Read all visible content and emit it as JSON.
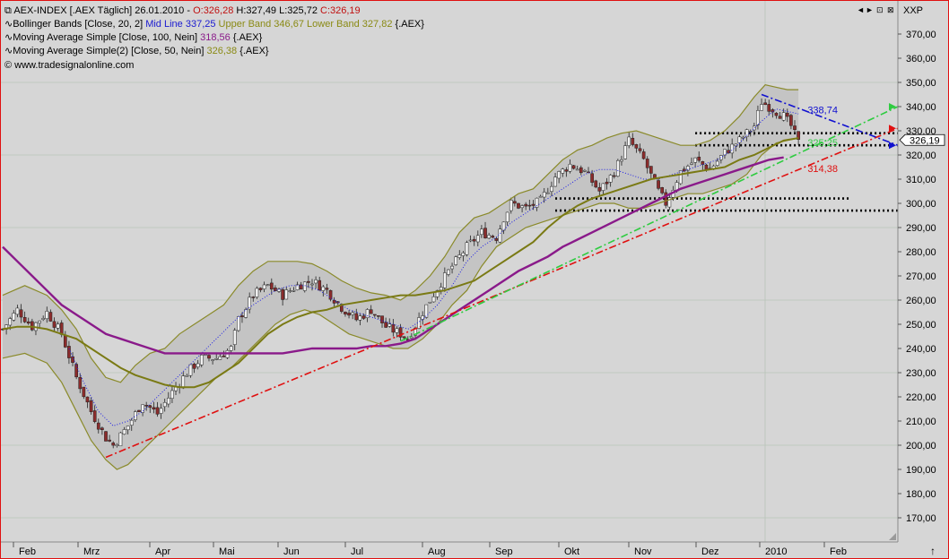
{
  "window": {
    "controls": [
      "◄",
      "►",
      "⊡",
      "⊠"
    ],
    "price_axis_label": "XXP"
  },
  "legend": {
    "line1": {
      "symbol": "AEX-INDEX [.AEX  Täglich]",
      "date": "26.01.2010 -",
      "open": "O:326,28",
      "high": "H:327,49",
      "low": "L:325,72",
      "close": "C:326,19"
    },
    "line2": {
      "prefix": "Bollinger Bands [Close, 20, 2]",
      "mid": "Mid Line 337,25",
      "upper": "Upper Band 346,67",
      "lower": "Lower Band 327,82",
      "suffix": "{.AEX}"
    },
    "line3": {
      "prefix": "Moving Average Simple [Close, 100, Nein]",
      "value": "318,56",
      "suffix": "{.AEX}"
    },
    "line4": {
      "prefix": "Moving Average Simple(2) [Close, 50, Nein]",
      "value": "326,38",
      "suffix": "{.AEX}"
    },
    "line5": "© www.tradesignalonline.com"
  },
  "colors": {
    "background": "#d6d6d6",
    "candle_up": "#f2f2f2",
    "candle_down": "#8c2c2c",
    "bollinger": "#8a8a2a",
    "bollinger_fill": "#c4c4c4",
    "bb_mid": "#1e1ee6",
    "ma100": "#8a1a8a",
    "ma50": "#7a7a14",
    "trend_red": "#e01010",
    "trend_green": "#2ecc40",
    "trend_blue": "#1010d0",
    "support": "#000000",
    "legend_mid": "#1a1ad0",
    "legend_upper": "#8a8a14",
    "legend_ma100": "#8a1a8a",
    "legend_ma50": "#8a8a14",
    "legend_ohlc": "#c01010"
  },
  "annotations": {
    "blue_value": "338,74",
    "green_value": "325,25",
    "red_value": "314,38",
    "last_price": "326,19"
  },
  "chart_data": {
    "type": "candlestick",
    "title": "AEX-INDEX [.AEX  Täglich]",
    "ylim": [
      160,
      380
    ],
    "yticks": [
      170,
      180,
      190,
      200,
      210,
      220,
      230,
      240,
      250,
      260,
      270,
      280,
      290,
      300,
      310,
      320,
      330,
      340,
      350,
      360,
      370
    ],
    "ytick_labels": [
      "170,00",
      "180,00",
      "190,00",
      "200,00",
      "210,00",
      "220,00",
      "230,00",
      "240,00",
      "250,00",
      "260,00",
      "270,00",
      "280,00",
      "290,00",
      "300,00",
      "310,00",
      "320,00",
      "330,00",
      "340,00",
      "350,00",
      "360,00",
      "370,00"
    ],
    "months": [
      "Feb",
      "Mrz",
      "Apr",
      "Mai",
      "Jun",
      "Jul",
      "Aug",
      "Sep",
      "Okt",
      "Nov",
      "Dez",
      "2010",
      "Feb"
    ],
    "grid": true,
    "price_path": [
      [
        0,
        248
      ],
      [
        4,
        256
      ],
      [
        8,
        249
      ],
      [
        12,
        255
      ],
      [
        16,
        246
      ],
      [
        20,
        228
      ],
      [
        24,
        214
      ],
      [
        28,
        203
      ],
      [
        30,
        200
      ],
      [
        34,
        208
      ],
      [
        38,
        218
      ],
      [
        42,
        213
      ],
      [
        46,
        222
      ],
      [
        50,
        230
      ],
      [
        54,
        236
      ],
      [
        58,
        236
      ],
      [
        62,
        240
      ],
      [
        64,
        252
      ],
      [
        68,
        262
      ],
      [
        72,
        266
      ],
      [
        76,
        262
      ],
      [
        80,
        266
      ],
      [
        84,
        268
      ],
      [
        88,
        264
      ],
      [
        92,
        257
      ],
      [
        96,
        252
      ],
      [
        100,
        256
      ],
      [
        104,
        249
      ],
      [
        108,
        246
      ],
      [
        110,
        244
      ],
      [
        114,
        255
      ],
      [
        118,
        265
      ],
      [
        122,
        274
      ],
      [
        126,
        282
      ],
      [
        130,
        288
      ],
      [
        134,
        286
      ],
      [
        136,
        294
      ],
      [
        138,
        300
      ],
      [
        142,
        298
      ],
      [
        146,
        301
      ],
      [
        150,
        311
      ],
      [
        154,
        316
      ],
      [
        158,
        313
      ],
      [
        162,
        305
      ],
      [
        166,
        313
      ],
      [
        170,
        326
      ],
      [
        174,
        318
      ],
      [
        178,
        305
      ],
      [
        180,
        300
      ],
      [
        184,
        313
      ],
      [
        188,
        318
      ],
      [
        192,
        314
      ],
      [
        196,
        321
      ],
      [
        200,
        326
      ],
      [
        204,
        332
      ],
      [
        206,
        342
      ],
      [
        208,
        340
      ],
      [
        212,
        336
      ],
      [
        214,
        332
      ],
      [
        216,
        325
      ]
    ],
    "bollinger_upper": [
      [
        0,
        262
      ],
      [
        6,
        266
      ],
      [
        12,
        262
      ],
      [
        16,
        256
      ],
      [
        20,
        248
      ],
      [
        24,
        236
      ],
      [
        28,
        228
      ],
      [
        32,
        226
      ],
      [
        36,
        233
      ],
      [
        40,
        238
      ],
      [
        44,
        240
      ],
      [
        48,
        246
      ],
      [
        52,
        250
      ],
      [
        56,
        254
      ],
      [
        60,
        258
      ],
      [
        64,
        266
      ],
      [
        68,
        272
      ],
      [
        72,
        276
      ],
      [
        76,
        276
      ],
      [
        80,
        276
      ],
      [
        84,
        275
      ],
      [
        88,
        272
      ],
      [
        92,
        268
      ],
      [
        96,
        265
      ],
      [
        100,
        263
      ],
      [
        104,
        262
      ],
      [
        108,
        260
      ],
      [
        112,
        264
      ],
      [
        116,
        270
      ],
      [
        120,
        278
      ],
      [
        124,
        288
      ],
      [
        128,
        294
      ],
      [
        132,
        296
      ],
      [
        136,
        300
      ],
      [
        140,
        304
      ],
      [
        144,
        306
      ],
      [
        148,
        312
      ],
      [
        152,
        318
      ],
      [
        156,
        322
      ],
      [
        160,
        324
      ],
      [
        164,
        327
      ],
      [
        168,
        329
      ],
      [
        172,
        330
      ],
      [
        176,
        328
      ],
      [
        180,
        326
      ],
      [
        184,
        324
      ],
      [
        188,
        324
      ],
      [
        192,
        326
      ],
      [
        196,
        330
      ],
      [
        200,
        336
      ],
      [
        204,
        344
      ],
      [
        207,
        349
      ],
      [
        210,
        348
      ],
      [
        213,
        347
      ],
      [
        216,
        347
      ]
    ],
    "bollinger_lower": [
      [
        0,
        236
      ],
      [
        6,
        238
      ],
      [
        12,
        234
      ],
      [
        16,
        226
      ],
      [
        20,
        214
      ],
      [
        24,
        202
      ],
      [
        28,
        194
      ],
      [
        31,
        190
      ],
      [
        34,
        192
      ],
      [
        38,
        198
      ],
      [
        42,
        204
      ],
      [
        46,
        210
      ],
      [
        50,
        216
      ],
      [
        54,
        222
      ],
      [
        58,
        228
      ],
      [
        62,
        232
      ],
      [
        66,
        238
      ],
      [
        70,
        244
      ],
      [
        74,
        250
      ],
      [
        78,
        254
      ],
      [
        82,
        256
      ],
      [
        86,
        254
      ],
      [
        90,
        250
      ],
      [
        94,
        246
      ],
      [
        98,
        244
      ],
      [
        102,
        242
      ],
      [
        106,
        240
      ],
      [
        110,
        240
      ],
      [
        114,
        244
      ],
      [
        118,
        250
      ],
      [
        122,
        258
      ],
      [
        126,
        264
      ],
      [
        130,
        274
      ],
      [
        134,
        282
      ],
      [
        138,
        286
      ],
      [
        142,
        290
      ],
      [
        146,
        292
      ],
      [
        150,
        294
      ],
      [
        154,
        296
      ],
      [
        158,
        298
      ],
      [
        162,
        300
      ],
      [
        166,
        300
      ],
      [
        170,
        298
      ],
      [
        174,
        298
      ],
      [
        178,
        300
      ],
      [
        182,
        302
      ],
      [
        186,
        304
      ],
      [
        190,
        304
      ],
      [
        194,
        306
      ],
      [
        198,
        308
      ],
      [
        202,
        312
      ],
      [
        206,
        320
      ],
      [
        210,
        325
      ],
      [
        213,
        326
      ],
      [
        216,
        327
      ]
    ],
    "bollinger_mid": [
      [
        18,
        240
      ],
      [
        22,
        226
      ],
      [
        26,
        214
      ],
      [
        30,
        208
      ],
      [
        34,
        210
      ],
      [
        38,
        214
      ],
      [
        42,
        220
      ],
      [
        46,
        226
      ],
      [
        50,
        232
      ],
      [
        54,
        238
      ],
      [
        58,
        244
      ],
      [
        62,
        250
      ],
      [
        66,
        256
      ],
      [
        70,
        260
      ],
      [
        74,
        264
      ],
      [
        78,
        266
      ],
      [
        82,
        266
      ],
      [
        86,
        264
      ],
      [
        90,
        260
      ],
      [
        94,
        256
      ],
      [
        98,
        254
      ],
      [
        102,
        252
      ],
      [
        106,
        250
      ],
      [
        110,
        248
      ],
      [
        114,
        252
      ],
      [
        118,
        258
      ],
      [
        122,
        266
      ],
      [
        126,
        276
      ],
      [
        130,
        282
      ],
      [
        134,
        286
      ],
      [
        138,
        292
      ],
      [
        142,
        296
      ],
      [
        146,
        300
      ],
      [
        150,
        304
      ],
      [
        154,
        308
      ],
      [
        158,
        312
      ],
      [
        162,
        314
      ],
      [
        166,
        314
      ],
      [
        170,
        312
      ],
      [
        174,
        310
      ],
      [
        178,
        310
      ],
      [
        182,
        312
      ],
      [
        186,
        314
      ],
      [
        190,
        316
      ],
      [
        194,
        318
      ],
      [
        198,
        322
      ],
      [
        202,
        328
      ],
      [
        206,
        334
      ],
      [
        210,
        339
      ],
      [
        213,
        338
      ],
      [
        216,
        337
      ]
    ],
    "ma100": [
      [
        0,
        282
      ],
      [
        4,
        276
      ],
      [
        8,
        270
      ],
      [
        12,
        264
      ],
      [
        16,
        258
      ],
      [
        20,
        254
      ],
      [
        24,
        250
      ],
      [
        28,
        246
      ],
      [
        32,
        244
      ],
      [
        36,
        242
      ],
      [
        40,
        240
      ],
      [
        44,
        238
      ],
      [
        48,
        238
      ],
      [
        52,
        238
      ],
      [
        56,
        238
      ],
      [
        60,
        238
      ],
      [
        64,
        238
      ],
      [
        68,
        238
      ],
      [
        72,
        238
      ],
      [
        76,
        238
      ],
      [
        80,
        239
      ],
      [
        84,
        240
      ],
      [
        88,
        240
      ],
      [
        92,
        240
      ],
      [
        96,
        240
      ],
      [
        100,
        241
      ],
      [
        104,
        241
      ],
      [
        108,
        242
      ],
      [
        112,
        244
      ],
      [
        116,
        248
      ],
      [
        120,
        252
      ],
      [
        124,
        256
      ],
      [
        128,
        260
      ],
      [
        132,
        264
      ],
      [
        136,
        268
      ],
      [
        140,
        272
      ],
      [
        144,
        275
      ],
      [
        148,
        278
      ],
      [
        152,
        282
      ],
      [
        156,
        285
      ],
      [
        160,
        288
      ],
      [
        164,
        291
      ],
      [
        168,
        294
      ],
      [
        172,
        297
      ],
      [
        176,
        300
      ],
      [
        180,
        303
      ],
      [
        184,
        306
      ],
      [
        188,
        308
      ],
      [
        192,
        310
      ],
      [
        196,
        312
      ],
      [
        200,
        314
      ],
      [
        204,
        316
      ],
      [
        208,
        318
      ],
      [
        212,
        319
      ]
    ],
    "ma50": [
      [
        0,
        248
      ],
      [
        4,
        249
      ],
      [
        8,
        249
      ],
      [
        12,
        248
      ],
      [
        16,
        246
      ],
      [
        20,
        244
      ],
      [
        24,
        240
      ],
      [
        28,
        236
      ],
      [
        32,
        232
      ],
      [
        36,
        229
      ],
      [
        40,
        227
      ],
      [
        44,
        225
      ],
      [
        48,
        224
      ],
      [
        52,
        224
      ],
      [
        56,
        226
      ],
      [
        60,
        230
      ],
      [
        64,
        234
      ],
      [
        68,
        240
      ],
      [
        72,
        246
      ],
      [
        76,
        250
      ],
      [
        80,
        253
      ],
      [
        84,
        255
      ],
      [
        88,
        256
      ],
      [
        92,
        258
      ],
      [
        96,
        259
      ],
      [
        100,
        260
      ],
      [
        104,
        261
      ],
      [
        108,
        262
      ],
      [
        112,
        262
      ],
      [
        116,
        263
      ],
      [
        120,
        264
      ],
      [
        124,
        266
      ],
      [
        128,
        268
      ],
      [
        132,
        272
      ],
      [
        136,
        276
      ],
      [
        140,
        280
      ],
      [
        144,
        284
      ],
      [
        148,
        290
      ],
      [
        152,
        295
      ],
      [
        156,
        299
      ],
      [
        160,
        302
      ],
      [
        164,
        304
      ],
      [
        168,
        306
      ],
      [
        172,
        308
      ],
      [
        176,
        310
      ],
      [
        180,
        311
      ],
      [
        184,
        312
      ],
      [
        188,
        313
      ],
      [
        192,
        314
      ],
      [
        196,
        315
      ],
      [
        200,
        318
      ],
      [
        204,
        320
      ],
      [
        208,
        323
      ],
      [
        212,
        326
      ],
      [
        216,
        327
      ]
    ],
    "trend_red": [
      [
        28,
        195
      ],
      [
        243,
        331
      ]
    ],
    "trend_green": [
      [
        108,
        243
      ],
      [
        243,
        340
      ]
    ],
    "trend_blue": [
      [
        206,
        345
      ],
      [
        243,
        324
      ]
    ],
    "support_lines": [
      {
        "from": 188,
        "to": 243,
        "y": 329
      },
      {
        "from": 188,
        "to": 243,
        "y": 324
      },
      {
        "from": 150,
        "to": 230,
        "y": 302
      },
      {
        "from": 150,
        "to": 243,
        "y": 297
      }
    ],
    "annotation_values": [
      {
        "label": "338,74",
        "x": 218,
        "y": 338.74,
        "color": "trend_blue"
      },
      {
        "label": "325,25",
        "x": 218,
        "y": 325.25,
        "color": "trend_green"
      },
      {
        "label": "314,38",
        "x": 218,
        "y": 314.38,
        "color": "trend_red"
      }
    ],
    "last_price": 326.19
  }
}
